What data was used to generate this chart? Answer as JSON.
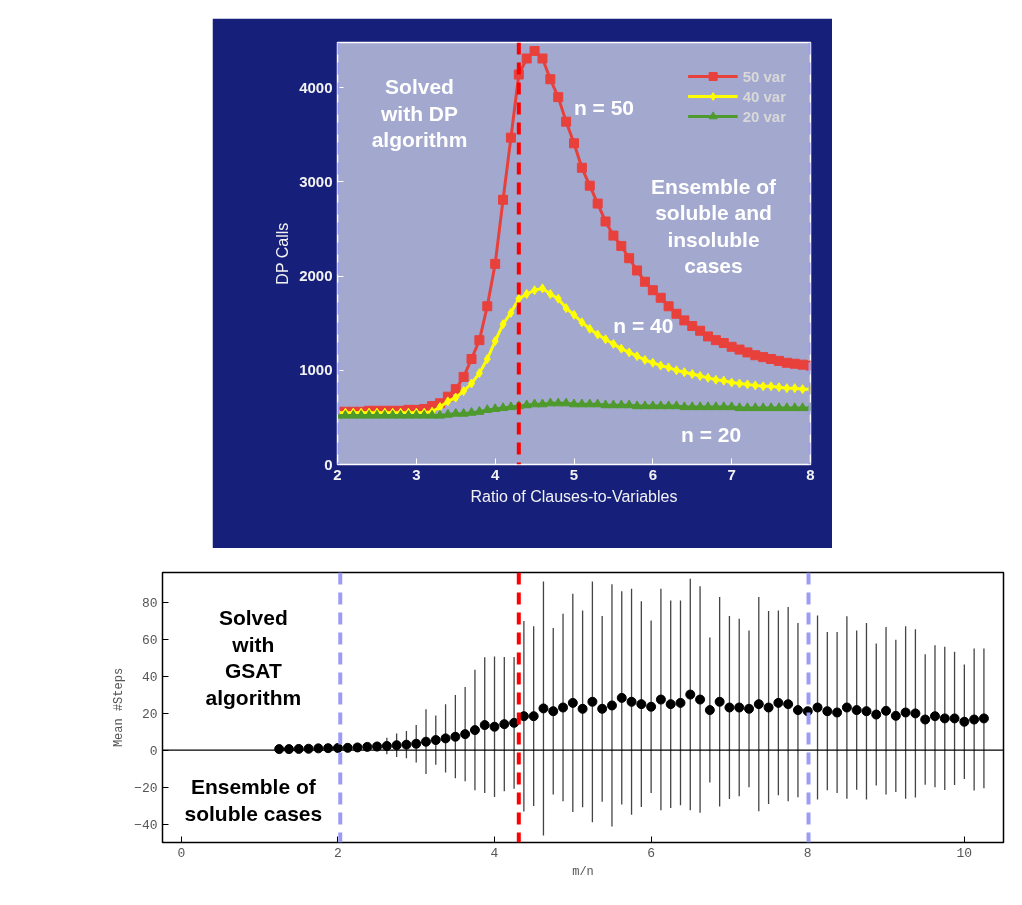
{
  "chart_data": [
    {
      "type": "line",
      "xlabel": "Ratio of Clauses-to-Variables",
      "ylabel": "DP Calls",
      "xlim": [
        2,
        8
      ],
      "ylim": [
        0,
        4480
      ],
      "xticks": [
        2,
        3,
        4,
        5,
        6,
        7,
        8
      ],
      "yticks": [
        0,
        1000,
        2000,
        3000,
        4000
      ],
      "legend": "top right",
      "grid": false,
      "x": [
        2.0,
        2.1,
        2.2,
        2.3,
        2.4,
        2.5,
        2.6,
        2.7,
        2.8,
        2.9,
        3.0,
        3.1,
        3.2,
        3.3,
        3.4,
        3.5,
        3.6,
        3.7,
        3.8,
        3.9,
        4.0,
        4.1,
        4.2,
        4.3,
        4.4,
        4.5,
        4.6,
        4.7,
        4.8,
        4.9,
        5.0,
        5.1,
        5.2,
        5.3,
        5.4,
        5.5,
        5.6,
        5.7,
        5.8,
        5.9,
        6.0,
        6.1,
        6.2,
        6.3,
        6.4,
        6.5,
        6.6,
        6.7,
        6.8,
        6.9,
        7.0,
        7.1,
        7.2,
        7.3,
        7.4,
        7.5,
        7.6,
        7.7,
        7.8,
        7.9,
        8.0
      ],
      "series": [
        {
          "name": "50 var",
          "color": "#e8413c",
          "marker": "square",
          "values": [
            560,
            560,
            560,
            560,
            570,
            570,
            570,
            570,
            570,
            580,
            580,
            590,
            620,
            650,
            720,
            800,
            930,
            1120,
            1320,
            1680,
            2130,
            2810,
            3470,
            4140,
            4310,
            4390,
            4310,
            4090,
            3900,
            3640,
            3410,
            3150,
            2960,
            2770,
            2580,
            2430,
            2320,
            2190,
            2060,
            1940,
            1850,
            1770,
            1680,
            1600,
            1530,
            1470,
            1420,
            1360,
            1320,
            1290,
            1250,
            1220,
            1190,
            1160,
            1140,
            1120,
            1100,
            1080,
            1070,
            1060,
            1050
          ]
        },
        {
          "name": "40 var",
          "color": "#ffff00",
          "marker": "diamond",
          "values": [
            550,
            550,
            550,
            550,
            550,
            550,
            550,
            550,
            550,
            550,
            550,
            550,
            560,
            610,
            670,
            710,
            780,
            860,
            970,
            1120,
            1310,
            1490,
            1610,
            1760,
            1810,
            1850,
            1870,
            1810,
            1760,
            1660,
            1590,
            1510,
            1440,
            1380,
            1330,
            1280,
            1230,
            1190,
            1150,
            1110,
            1080,
            1050,
            1030,
            1000,
            980,
            960,
            940,
            920,
            900,
            890,
            870,
            860,
            850,
            840,
            830,
            830,
            820,
            810,
            810,
            800,
            800
          ]
        },
        {
          "name": "20 var",
          "color": "#4e9a2c",
          "marker": "triangle",
          "values": [
            520,
            520,
            520,
            520,
            520,
            520,
            520,
            520,
            520,
            520,
            520,
            520,
            520,
            520,
            530,
            540,
            540,
            550,
            560,
            580,
            590,
            600,
            610,
            620,
            630,
            640,
            640,
            650,
            650,
            650,
            640,
            640,
            640,
            640,
            630,
            630,
            630,
            630,
            620,
            620,
            620,
            620,
            620,
            620,
            610,
            610,
            610,
            610,
            610,
            610,
            610,
            600,
            600,
            600,
            600,
            600,
            600,
            600,
            600,
            600,
            600
          ]
        }
      ],
      "ref_lines": [
        {
          "axis": "x",
          "value": 4.3,
          "color": "#ff0000",
          "line_style": "dashed"
        },
        {
          "axis": "x",
          "value": 2.0,
          "color": "#9c9cf4",
          "line_style": "dashed"
        },
        {
          "axis": "x",
          "value": 8.0,
          "color": "#9c9cf4",
          "line_style": "dashed"
        }
      ],
      "annotations": [
        "Solved\nwith DP\nalgorithm",
        "n = 50",
        "Ensemble of\nsoluble and\ninsoluble\ncases",
        "n = 40",
        "n = 20"
      ]
    },
    {
      "type": "scatter",
      "xlabel": "m/n",
      "ylabel": "Mean #Steps",
      "xlim": [
        -0.24,
        10.5
      ],
      "ylim": [
        -50,
        96
      ],
      "xticks": [
        0,
        2,
        4,
        6,
        8,
        10
      ],
      "yticks": [
        -40,
        -20,
        0,
        20,
        40,
        60,
        80
      ],
      "grid": false,
      "marker": "circle",
      "x": [
        1.25,
        1.375,
        1.5,
        1.625,
        1.75,
        1.875,
        2.0,
        2.125,
        2.25,
        2.375,
        2.5,
        2.625,
        2.75,
        2.875,
        3.0,
        3.125,
        3.25,
        3.375,
        3.5,
        3.625,
        3.75,
        3.875,
        4.0,
        4.125,
        4.25,
        4.375,
        4.5,
        4.625,
        4.75,
        4.875,
        5.0,
        5.125,
        5.25,
        5.375,
        5.5,
        5.625,
        5.75,
        5.875,
        6.0,
        6.125,
        6.25,
        6.375,
        6.5,
        6.625,
        6.75,
        6.875,
        7.0,
        7.125,
        7.25,
        7.375,
        7.5,
        7.625,
        7.75,
        7.875,
        8.0,
        8.125,
        8.25,
        8.375,
        8.5,
        8.625,
        8.75,
        8.875,
        9.0,
        9.125,
        9.25,
        9.375,
        9.5,
        9.625,
        9.75,
        9.875,
        10.0,
        10.125,
        10.25
      ],
      "series": [
        {
          "color": "#000000",
          "values": [
            0.5,
            0.5,
            0.6,
            0.7,
            0.9,
            1.0,
            1.1,
            1.2,
            1.4,
            1.7,
            1.9,
            2.2,
            2.6,
            2.9,
            3.4,
            4.5,
            5.4,
            6.3,
            7.2,
            8.6,
            10.8,
            13.5,
            12.6,
            14.0,
            14.7,
            18.3,
            18.3,
            22.5,
            21.0,
            23.0,
            25.5,
            22.3,
            26.1,
            22.3,
            24.1,
            28.2,
            26.1,
            24.8,
            23.4,
            27.3,
            24.8,
            25.5,
            30.0,
            27.3,
            21.6,
            26.1,
            23.0,
            23.0,
            22.3,
            24.8,
            23.0,
            25.5,
            24.8,
            21.6,
            21.0,
            23.0,
            21.0,
            20.3,
            23.0,
            21.6,
            21.0,
            19.2,
            21.2,
            18.5,
            20.3,
            19.8,
            16.5,
            18.3,
            17.1,
            17.1,
            15.3,
            16.5,
            17.1
          ],
          "errors": [
            null,
            null,
            null,
            null,
            null,
            null,
            null,
            1.0,
            1.5,
            2.0,
            2.6,
            4.5,
            6.3,
            7.4,
            10.1,
            17.5,
            13.3,
            18.5,
            22.5,
            25.5,
            32.6,
            36.7,
            38.0,
            36.3,
            35.6,
            51.5,
            48.6,
            68.7,
            45.0,
            50.7,
            59.0,
            53.2,
            65.1,
            50.2,
            65.5,
            57.6,
            61.1,
            55.6,
            46.7,
            59.9,
            56.1,
            55.4,
            62.6,
            61.2,
            39.2,
            56.6,
            49.5,
            48.0,
            42.4,
            57.9,
            52.2,
            50.0,
            52.5,
            47.1,
            null,
            49.8,
            42.8,
            43.5,
            49.3,
            43.1,
            47.7,
            38.4,
            45.3,
            41.2,
            46.6,
            45.5,
            35.3,
            38.4,
            38.7,
            36.0,
            30.9,
            38.4,
            37.8
          ]
        }
      ],
      "ref_lines": [
        {
          "axis": "y",
          "value": 0,
          "color": "#000000",
          "line_style": "solid"
        },
        {
          "axis": "x",
          "value": 4.31,
          "color": "#ff0000",
          "line_style": "dashed"
        },
        {
          "axis": "x",
          "value": 2.03,
          "color": "#9c9cf4",
          "line_style": "dashed"
        },
        {
          "axis": "x",
          "value": 8.01,
          "color": "#9c9cf4",
          "line_style": "dashed"
        }
      ],
      "annotations": [
        "Solved\nwith\nGSAT\nalgorithm",
        "Ensemble of\nsoluble cases"
      ]
    }
  ]
}
